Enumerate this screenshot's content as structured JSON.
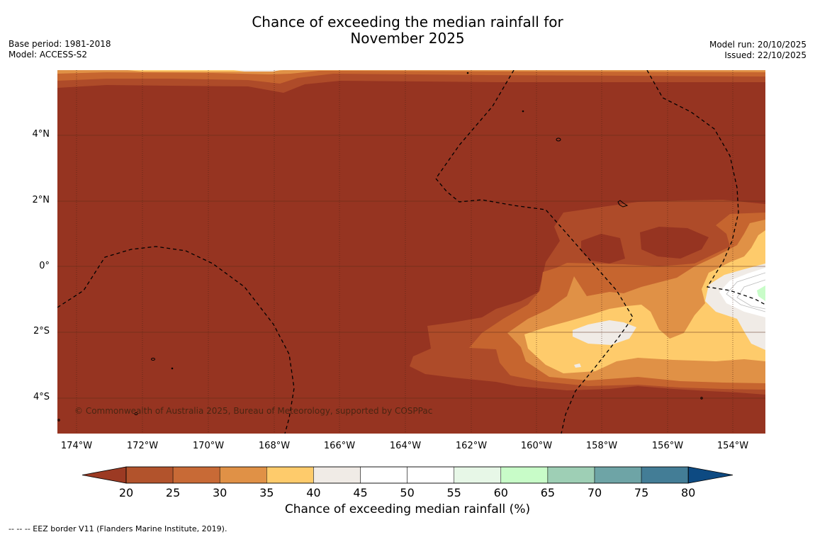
{
  "title": {
    "line1": "Chance of exceeding the median rainfall for",
    "line2": "November 2025"
  },
  "meta_left": {
    "base_period": "Base period: 1981-2018",
    "model": "Model: ACCESS-S2"
  },
  "meta_right": {
    "model_run": "Model run: 20/10/2025",
    "issued": "Issued: 22/10/2025"
  },
  "axes": {
    "lat_labels": [
      "4°N",
      "2°N",
      "0°",
      "2°S",
      "4°S"
    ],
    "lon_labels": [
      "174°W",
      "172°W",
      "170°W",
      "168°W",
      "166°W",
      "164°W",
      "162°W",
      "160°W",
      "158°W",
      "156°W",
      "154°W"
    ]
  },
  "copyright": "© Commonwealth of Australia 2025, Bureau of Meteorology, supported by COSPPac",
  "colorbar": {
    "title": "Chance of exceeding median rainfall (%)",
    "ticks": [
      "20",
      "25",
      "30",
      "35",
      "40",
      "45",
      "50",
      "55",
      "60",
      "65",
      "70",
      "75",
      "80"
    ],
    "colors": [
      "#9c3a23",
      "#b2532c",
      "#c86a36",
      "#e09146",
      "#fecb6b",
      "#f0ebe6",
      "#ffffff",
      "#ffffff",
      "#e7f7e7",
      "#c8fcc8",
      "#9ecfb5",
      "#6ea4a6",
      "#437d96",
      "#0d4a82"
    ]
  },
  "legend": "--  --  -- EEZ border V11 (Flanders Marine Institute, 2019)."
}
